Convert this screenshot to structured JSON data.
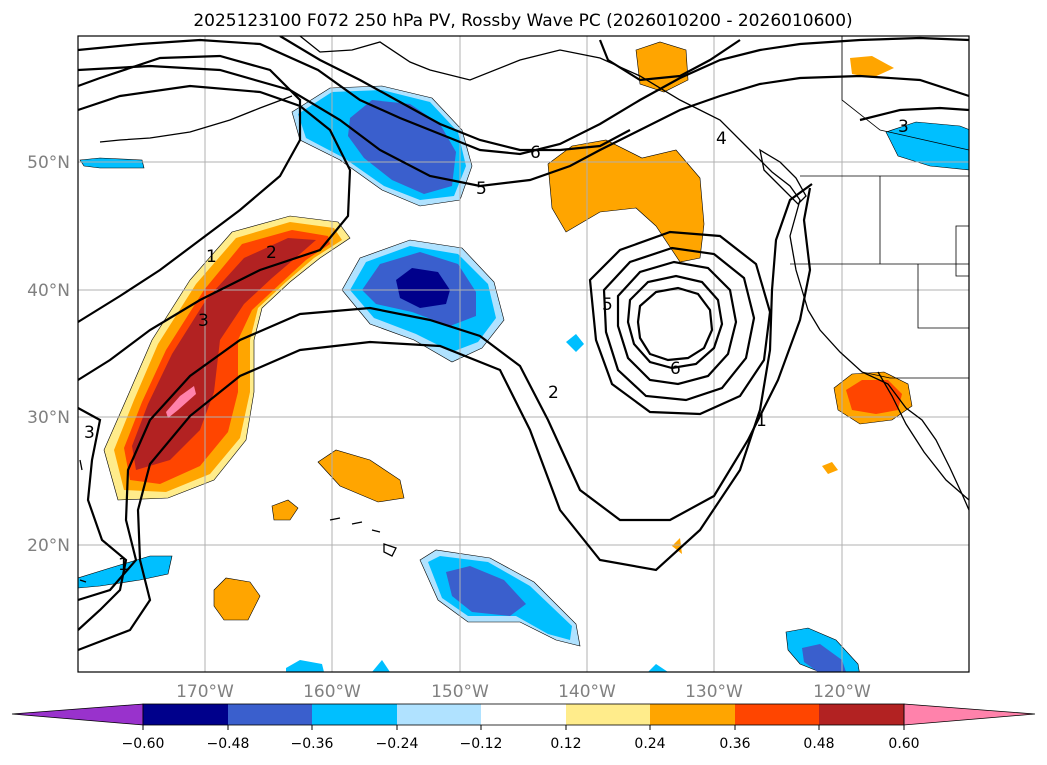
{
  "title": "2025123100 F072 250 hPa PV, Rossby Wave PC (2026010200 - 2026010600)",
  "latitude_labels": [
    "50°N",
    "40°N",
    "30°N",
    "20°N"
  ],
  "longitude_labels": [
    "170°W",
    "160°W",
    "150°W",
    "140°W",
    "130°W",
    "120°W"
  ],
  "colorbar": {
    "tick_labels": [
      "−0.60",
      "−0.48",
      "−0.36",
      "−0.24",
      "−0.12",
      "0.12",
      "0.24",
      "0.36",
      "0.48",
      "0.60"
    ],
    "colors": [
      "#9932cc",
      "#00008b",
      "#3a5fcd",
      "#00bfff",
      "#b0e2ff",
      "#ffffff",
      "#ffec8b",
      "#ffa500",
      "#ff4500",
      "#b22222",
      "#ff82ab"
    ]
  },
  "contour_labels": [
    {
      "id": "c1-west",
      "text": "1"
    },
    {
      "id": "c2-west",
      "text": "2"
    },
    {
      "id": "c3-west",
      "text": "3"
    },
    {
      "id": "c3-edge",
      "text": "3"
    },
    {
      "id": "c1-edge",
      "text": "1"
    },
    {
      "id": "c6-north",
      "text": "6"
    },
    {
      "id": "c5-north",
      "text": "5"
    },
    {
      "id": "c4-north",
      "text": "4"
    },
    {
      "id": "c3-ne",
      "text": "3"
    },
    {
      "id": "c5-low",
      "text": "5"
    },
    {
      "id": "c6-low",
      "text": "6"
    },
    {
      "id": "c2-mid",
      "text": "2"
    },
    {
      "id": "c1-east",
      "text": "1"
    }
  ]
}
